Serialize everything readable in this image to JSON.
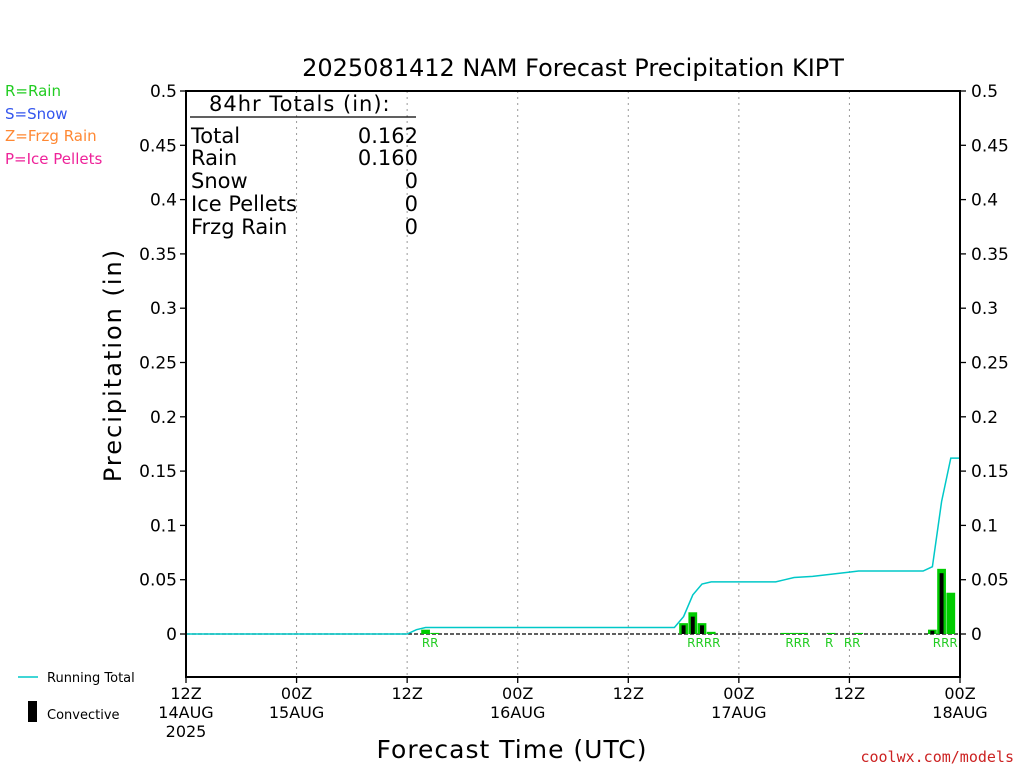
{
  "chart_data": {
    "type": "bar",
    "title": "2025081412 NAM Forecast Precipitation KIPT",
    "xlabel": "Forecast Time (UTC)",
    "ylabel": "Precipitation (in)",
    "ylim": [
      -0.04,
      0.5
    ],
    "xlim_hours": [
      0,
      84
    ],
    "y_ticks": [
      "0.5",
      "0.45",
      "0.4",
      "0.35",
      "0.3",
      "0.25",
      "0.2",
      "0.15",
      "0.1",
      "0.05",
      "0"
    ],
    "x_ticks": [
      {
        "hour": 0,
        "line1": "12Z",
        "line2": "14AUG",
        "line3": "2025"
      },
      {
        "hour": 12,
        "line1": "00Z",
        "line2": "15AUG",
        "line3": ""
      },
      {
        "hour": 24,
        "line1": "12Z",
        "line2": "",
        "line3": ""
      },
      {
        "hour": 36,
        "line1": "00Z",
        "line2": "16AUG",
        "line3": ""
      },
      {
        "hour": 48,
        "line1": "12Z",
        "line2": "",
        "line3": ""
      },
      {
        "hour": 60,
        "line1": "00Z",
        "line2": "17AUG",
        "line3": ""
      },
      {
        "hour": 72,
        "line1": "12Z",
        "line2": "",
        "line3": ""
      },
      {
        "hour": 84,
        "line1": "00Z",
        "line2": "18AUG",
        "line3": ""
      }
    ],
    "grid": "vertical dotted every 12 hours",
    "precip_type_legend": [
      {
        "code": "R=Rain",
        "color": "#22cc22"
      },
      {
        "code": "S=Snow",
        "color": "#3355ee"
      },
      {
        "code": "Z=Frzg Rain",
        "color": "#ff8833"
      },
      {
        "code": "P=Ice Pellets",
        "color": "#ee2299"
      }
    ],
    "series_legend": {
      "running_total": "Running Total",
      "convective": "Convective"
    },
    "colors": {
      "rain": "#00cc00",
      "convective": "#000000",
      "running_total": "#00c8c8"
    },
    "totals_box": {
      "heading": "84hr Totals (in):",
      "rows": [
        {
          "label": "Total",
          "value": "0.162"
        },
        {
          "label": "Rain",
          "value": "0.160"
        },
        {
          "label": "Snow",
          "value": "0"
        },
        {
          "label": "Ice Pellets",
          "value": "0"
        },
        {
          "label": "Frzg Rain",
          "value": "0"
        }
      ]
    },
    "precip_bars": [
      {
        "hour": 26,
        "total": 0.004,
        "convective": 0.0
      },
      {
        "hour": 27,
        "total": 0.001,
        "convective": 0.0
      },
      {
        "hour": 54,
        "total": 0.01,
        "convective": 0.008
      },
      {
        "hour": 55,
        "total": 0.02,
        "convective": 0.016
      },
      {
        "hour": 56,
        "total": 0.01,
        "convective": 0.008
      },
      {
        "hour": 57,
        "total": 0.002,
        "convective": 0.0
      },
      {
        "hour": 65,
        "total": 0.001,
        "convective": 0.0
      },
      {
        "hour": 66,
        "total": 0.001,
        "convective": 0.0
      },
      {
        "hour": 67,
        "total": 0.001,
        "convective": 0.0
      },
      {
        "hour": 70,
        "total": 0.001,
        "convective": 0.0
      },
      {
        "hour": 73,
        "total": 0.001,
        "convective": 0.0
      },
      {
        "hour": 81,
        "total": 0.004,
        "convective": 0.003
      },
      {
        "hour": 82,
        "total": 0.06,
        "convective": 0.056
      },
      {
        "hour": 83,
        "total": 0.038,
        "convective": 0.0
      }
    ],
    "running_total": [
      {
        "hour": 0,
        "value": 0
      },
      {
        "hour": 24,
        "value": 0
      },
      {
        "hour": 25,
        "value": 0.004
      },
      {
        "hour": 26,
        "value": 0.006
      },
      {
        "hour": 53,
        "value": 0.006
      },
      {
        "hour": 54,
        "value": 0.016
      },
      {
        "hour": 55,
        "value": 0.036
      },
      {
        "hour": 56,
        "value": 0.046
      },
      {
        "hour": 57,
        "value": 0.048
      },
      {
        "hour": 64,
        "value": 0.048
      },
      {
        "hour": 65,
        "value": 0.05
      },
      {
        "hour": 66,
        "value": 0.052
      },
      {
        "hour": 68,
        "value": 0.053
      },
      {
        "hour": 70,
        "value": 0.055
      },
      {
        "hour": 72,
        "value": 0.057
      },
      {
        "hour": 73,
        "value": 0.058
      },
      {
        "hour": 80,
        "value": 0.058
      },
      {
        "hour": 81,
        "value": 0.062
      },
      {
        "hour": 82,
        "value": 0.122
      },
      {
        "hour": 83,
        "value": 0.162
      },
      {
        "hour": 84,
        "value": 0.162
      }
    ],
    "type_labels": [
      {
        "hour": 26.5,
        "text": "RR"
      },
      {
        "hour": 56.2,
        "text": "RRRR"
      },
      {
        "hour": 66.4,
        "text": "RRR"
      },
      {
        "hour": 69.8,
        "text": "R"
      },
      {
        "hour": 72.3,
        "text": "RR"
      },
      {
        "hour": 82.4,
        "text": "RRR"
      }
    ]
  },
  "footer": {
    "credit": "coolwx.com/models"
  }
}
